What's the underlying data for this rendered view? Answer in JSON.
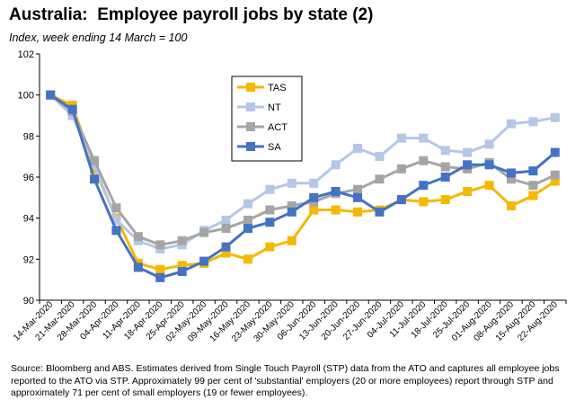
{
  "title": "Australia:  Employee payroll jobs by state (2)",
  "subtitle": "Index, week ending 14 March = 100",
  "source": "Source: Bloomberg and ABS.  Estimates derived from Single Touch Payroll (STP) data from the ATO and captures all employee jobs reported to the ATO via STP.  Approximately 99 per cent of 'substantial' employers (20 or more employees) report through STP and approximately 71 per cent of small employers (19 or fewer employees).",
  "chart_data": {
    "type": "line",
    "title": "Australia:  Employee payroll jobs by state (2)",
    "subtitle": "Index, week ending 14 March = 100",
    "xlabel": "",
    "ylabel": "",
    "ylim": [
      90,
      102
    ],
    "yticks": [
      90,
      92,
      94,
      96,
      98,
      100,
      102
    ],
    "grid": false,
    "legend": "upper-center",
    "categories": [
      "14-Mar-2020",
      "21-Mar-2020",
      "28-Mar-2020",
      "04-Apr-2020",
      "11-Apr-2020",
      "18-Apr-2020",
      "25-Apr-2020",
      "02-May-2020",
      "09-May-2020",
      "16-May-2020",
      "23-May-2020",
      "30-May-2020",
      "06-Jun-2020",
      "13-Jun-2020",
      "20-Jun-2020",
      "27-Jun-2020",
      "04-Jul-2020",
      "11-Jul-2020",
      "18-Jul-2020",
      "25-Jul-2020",
      "01-Aug-2020",
      "08-Aug-2020",
      "15-Aug-2020",
      "22-Aug-2020"
    ],
    "series": [
      {
        "name": "TAS",
        "color": "#F5B800",
        "values": [
          100.0,
          99.5,
          96.4,
          94.0,
          91.8,
          91.5,
          91.7,
          91.8,
          92.3,
          92.0,
          92.6,
          92.9,
          94.4,
          94.4,
          94.3,
          94.4,
          94.9,
          94.8,
          94.9,
          95.3,
          95.6,
          94.6,
          95.1,
          95.8
        ]
      },
      {
        "name": "NT",
        "color": "#B4C7E7",
        "values": [
          100.0,
          99.0,
          96.6,
          93.9,
          92.9,
          92.5,
          92.7,
          93.4,
          93.9,
          94.7,
          95.4,
          95.7,
          95.7,
          96.6,
          97.4,
          97.0,
          97.9,
          97.9,
          97.3,
          97.2,
          97.6,
          98.6,
          98.7,
          98.9
        ]
      },
      {
        "name": "ACT",
        "color": "#A5A5A5",
        "values": [
          100.0,
          99.2,
          96.8,
          94.5,
          93.1,
          92.7,
          92.9,
          93.3,
          93.5,
          93.9,
          94.4,
          94.6,
          94.8,
          95.2,
          95.4,
          95.9,
          96.4,
          96.8,
          96.5,
          96.4,
          96.7,
          95.9,
          95.6,
          96.1
        ]
      },
      {
        "name": "SA",
        "color": "#4472C4",
        "values": [
          100.0,
          99.3,
          95.9,
          93.4,
          91.6,
          91.1,
          91.4,
          91.9,
          92.6,
          93.5,
          93.8,
          94.3,
          95.0,
          95.3,
          95.0,
          94.3,
          94.9,
          95.6,
          96.0,
          96.6,
          96.6,
          96.2,
          96.3,
          97.2
        ]
      }
    ]
  }
}
